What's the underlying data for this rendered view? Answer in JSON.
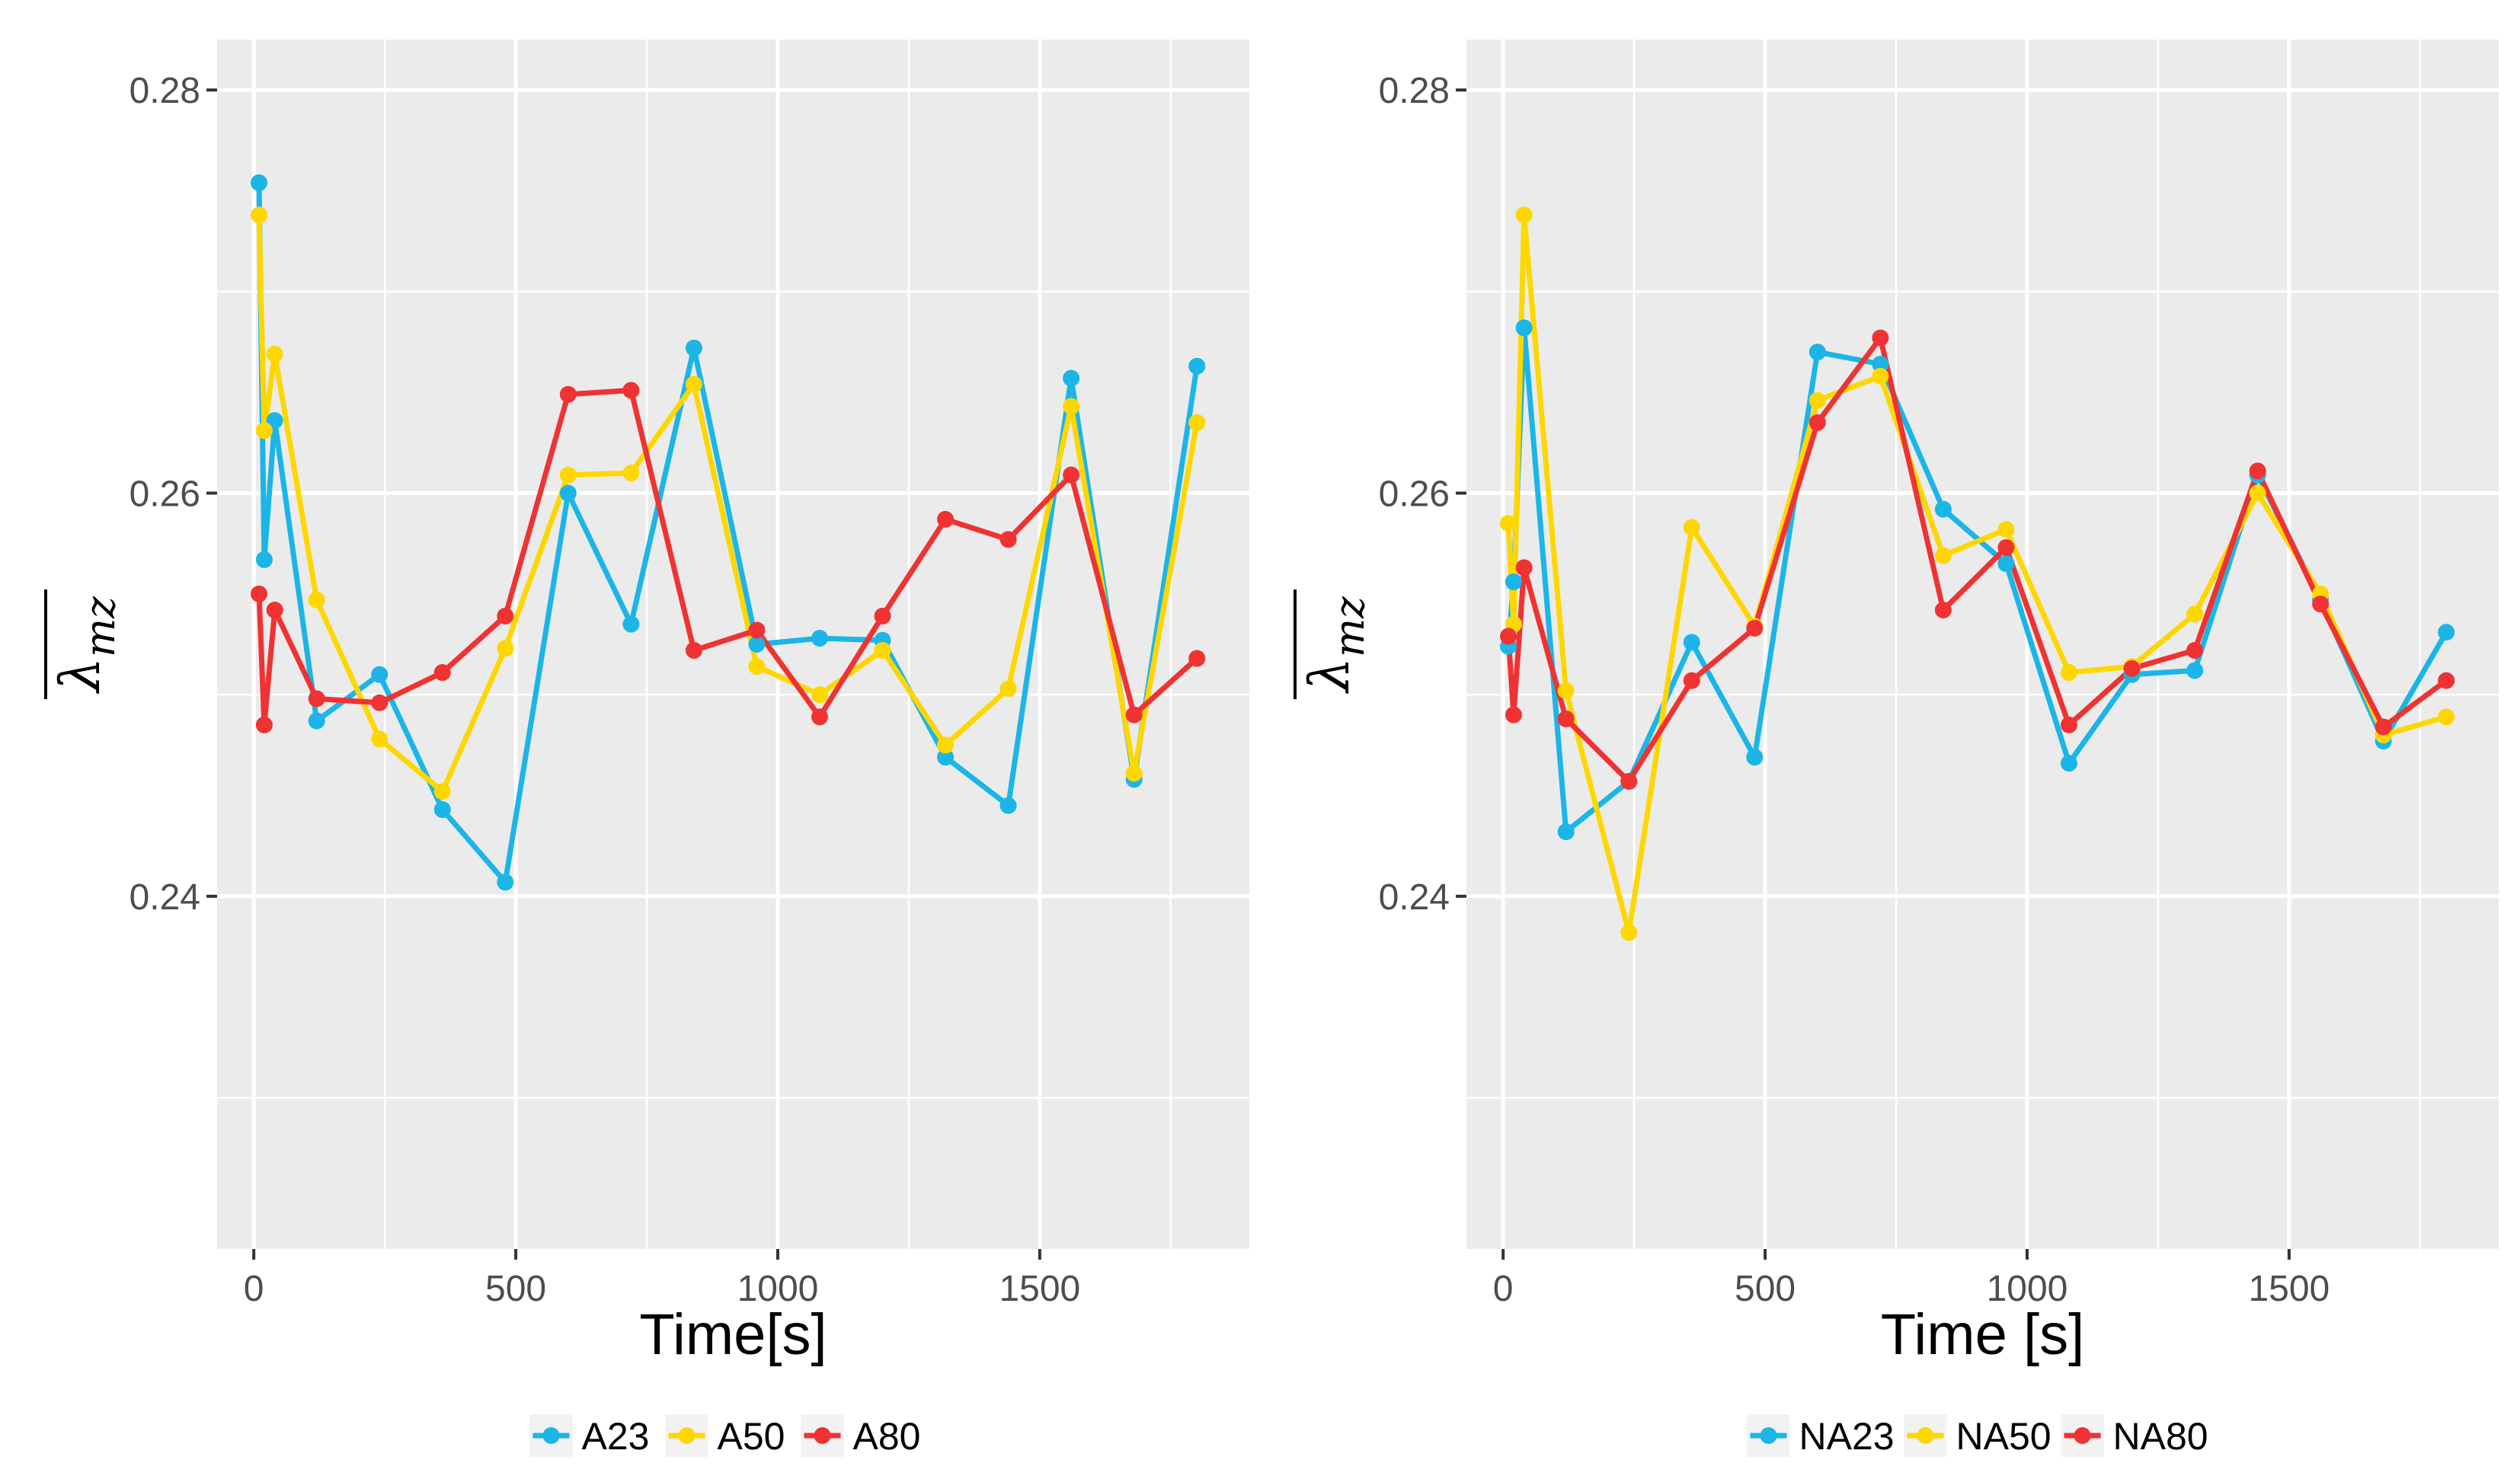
{
  "colors": {
    "blue": "#1BB5E8",
    "yellow": "#FFD700",
    "red": "#F03232",
    "panel_bg": "#EBEBEB",
    "grid": "#FFFFFF"
  },
  "chart_data": [
    {
      "type": "line",
      "xlabel": "Time[s]",
      "ylabel_symbol": "λ",
      "ylabel_subscript": "mz",
      "xlim": [
        -70,
        1900
      ],
      "ylim": [
        0.2225,
        0.2825
      ],
      "x_ticks": [
        0,
        500,
        1000,
        1500
      ],
      "x_tick_labels": [
        "0",
        "500",
        "1000",
        "1500"
      ],
      "y_ticks": [
        0.24,
        0.26,
        0.28
      ],
      "y_tick_labels": [
        "0.24",
        "0.26",
        "0.28"
      ],
      "y_minor_ticks": [
        0.23,
        0.25,
        0.27
      ],
      "legend_position": "bottom",
      "x": [
        10,
        20,
        40,
        120,
        240,
        360,
        480,
        600,
        720,
        840,
        960,
        1080,
        1200,
        1320,
        1440,
        1560,
        1680,
        1800
      ],
      "series": [
        {
          "name": "A23",
          "color": "#1BB5E8",
          "values": [
            0.2754,
            0.2567,
            0.2636,
            0.2487,
            0.251,
            0.2443,
            0.2407,
            0.26,
            0.2535,
            0.2672,
            0.2525,
            0.2528,
            0.2527,
            0.2469,
            0.2445,
            0.2657,
            0.2458,
            0.2663
          ]
        },
        {
          "name": "A50",
          "color": "#FFD700",
          "values": [
            0.2738,
            0.2631,
            0.2669,
            0.2547,
            0.2478,
            0.2452,
            0.2523,
            0.2609,
            0.261,
            0.2654,
            0.2514,
            0.25,
            0.2522,
            0.2475,
            0.2503,
            0.2643,
            0.2461,
            0.2635
          ]
        },
        {
          "name": "A80",
          "color": "#F03232",
          "values": [
            0.255,
            0.2485,
            0.2542,
            0.2498,
            0.2496,
            0.2511,
            0.2539,
            0.2649,
            0.2651,
            0.2522,
            0.2532,
            0.2489,
            0.2539,
            0.2587,
            0.2577,
            0.2609,
            0.249,
            0.2518
          ]
        }
      ]
    },
    {
      "type": "line",
      "xlabel": "Time [s]",
      "ylabel_symbol": "λ",
      "ylabel_subscript": "mz",
      "xlim": [
        -70,
        1900
      ],
      "ylim": [
        0.2225,
        0.2825
      ],
      "x_ticks": [
        0,
        500,
        1000,
        1500
      ],
      "x_tick_labels": [
        "0",
        "500",
        "1000",
        "1500"
      ],
      "y_ticks": [
        0.24,
        0.26,
        0.28
      ],
      "y_tick_labels": [
        "0.24",
        "0.26",
        "0.28"
      ],
      "y_minor_ticks": [
        0.23,
        0.25,
        0.27
      ],
      "legend_position": "bottom",
      "x": [
        10,
        20,
        40,
        120,
        240,
        360,
        480,
        600,
        720,
        840,
        960,
        1080,
        1200,
        1320,
        1440,
        1560,
        1680,
        1800
      ],
      "series": [
        {
          "name": "NA23",
          "color": "#1BB5E8",
          "values": [
            0.2524,
            0.2556,
            0.2682,
            0.2432,
            0.2457,
            0.2526,
            0.2469,
            0.267,
            0.2664,
            0.2592,
            0.2565,
            0.2466,
            0.251,
            0.2512,
            0.2609,
            0.2547,
            0.2477,
            0.2531
          ]
        },
        {
          "name": "NA50",
          "color": "#FFD700",
          "values": [
            0.2585,
            0.2535,
            0.2738,
            0.2502,
            0.2382,
            0.2583,
            0.2534,
            0.2646,
            0.2658,
            0.2569,
            0.2582,
            0.2511,
            0.2514,
            0.254,
            0.26,
            0.255,
            0.248,
            0.2489
          ]
        },
        {
          "name": "NA80",
          "color": "#F03232",
          "values": [
            0.2529,
            0.249,
            0.2563,
            0.2488,
            0.2457,
            0.2507,
            0.2533,
            0.2635,
            0.2677,
            0.2542,
            0.2573,
            0.2485,
            0.2513,
            0.2522,
            0.2611,
            0.2545,
            0.2484,
            0.2507
          ]
        }
      ]
    }
  ]
}
